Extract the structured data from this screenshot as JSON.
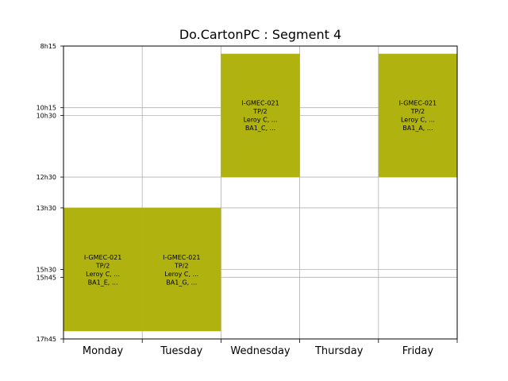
{
  "chart_data": {
    "type": "timetable",
    "title": "Do.CartonPC : Segment 4",
    "days": [
      "Monday",
      "Tuesday",
      "Wednesday",
      "Thursday",
      "Friday"
    ],
    "ytick_labels": [
      "8h15",
      "10h15",
      "10h30",
      "12h30",
      "13h30",
      "15h30",
      "15h45",
      "17h45"
    ],
    "ytick_values": [
      8.25,
      10.25,
      10.5,
      12.5,
      13.5,
      15.5,
      15.75,
      17.75
    ],
    "ylim": [
      8.25,
      17.75
    ],
    "grid": true,
    "block_color": "#b0b30f",
    "events": [
      {
        "day": "Monday",
        "start": 13.5,
        "end": 17.5,
        "lines": [
          "I-GMEC-021",
          "TP/2",
          "Leroy C, ...",
          "BA1_E, ..."
        ]
      },
      {
        "day": "Tuesday",
        "start": 13.5,
        "end": 17.5,
        "lines": [
          "I-GMEC-021",
          "TP/2",
          "Leroy C, ...",
          "BA1_G, ..."
        ]
      },
      {
        "day": "Wednesday",
        "start": 8.5,
        "end": 12.5,
        "lines": [
          "I-GMEC-021",
          "TP/2",
          "Leroy C, ...",
          "BA1_C, ..."
        ]
      },
      {
        "day": "Friday",
        "start": 8.5,
        "end": 12.5,
        "lines": [
          "I-GMEC-021",
          "TP/2",
          "Leroy C, ...",
          "BA1_A, ..."
        ]
      }
    ]
  }
}
